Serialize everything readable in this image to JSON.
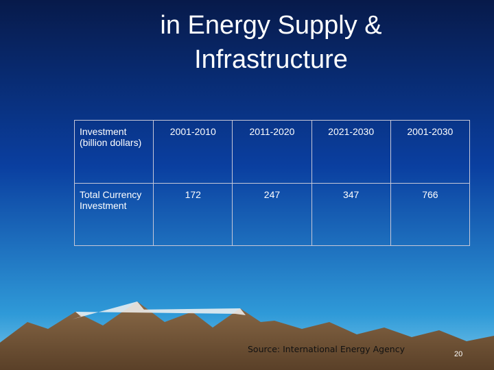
{
  "header": {
    "title_lines": [
      "in Energy Supply &",
      "Infrastructure"
    ]
  },
  "table": {
    "rows": [
      [
        "Investment (billion dollars)",
        "2001-2010",
        "2011-2020",
        "2021-2030",
        "2001-2030"
      ],
      [
        "Total Currency Investment",
        172,
        247,
        347,
        766
      ]
    ]
  },
  "footer": {
    "source": "Source: International Energy Agency",
    "page_number": 20
  }
}
